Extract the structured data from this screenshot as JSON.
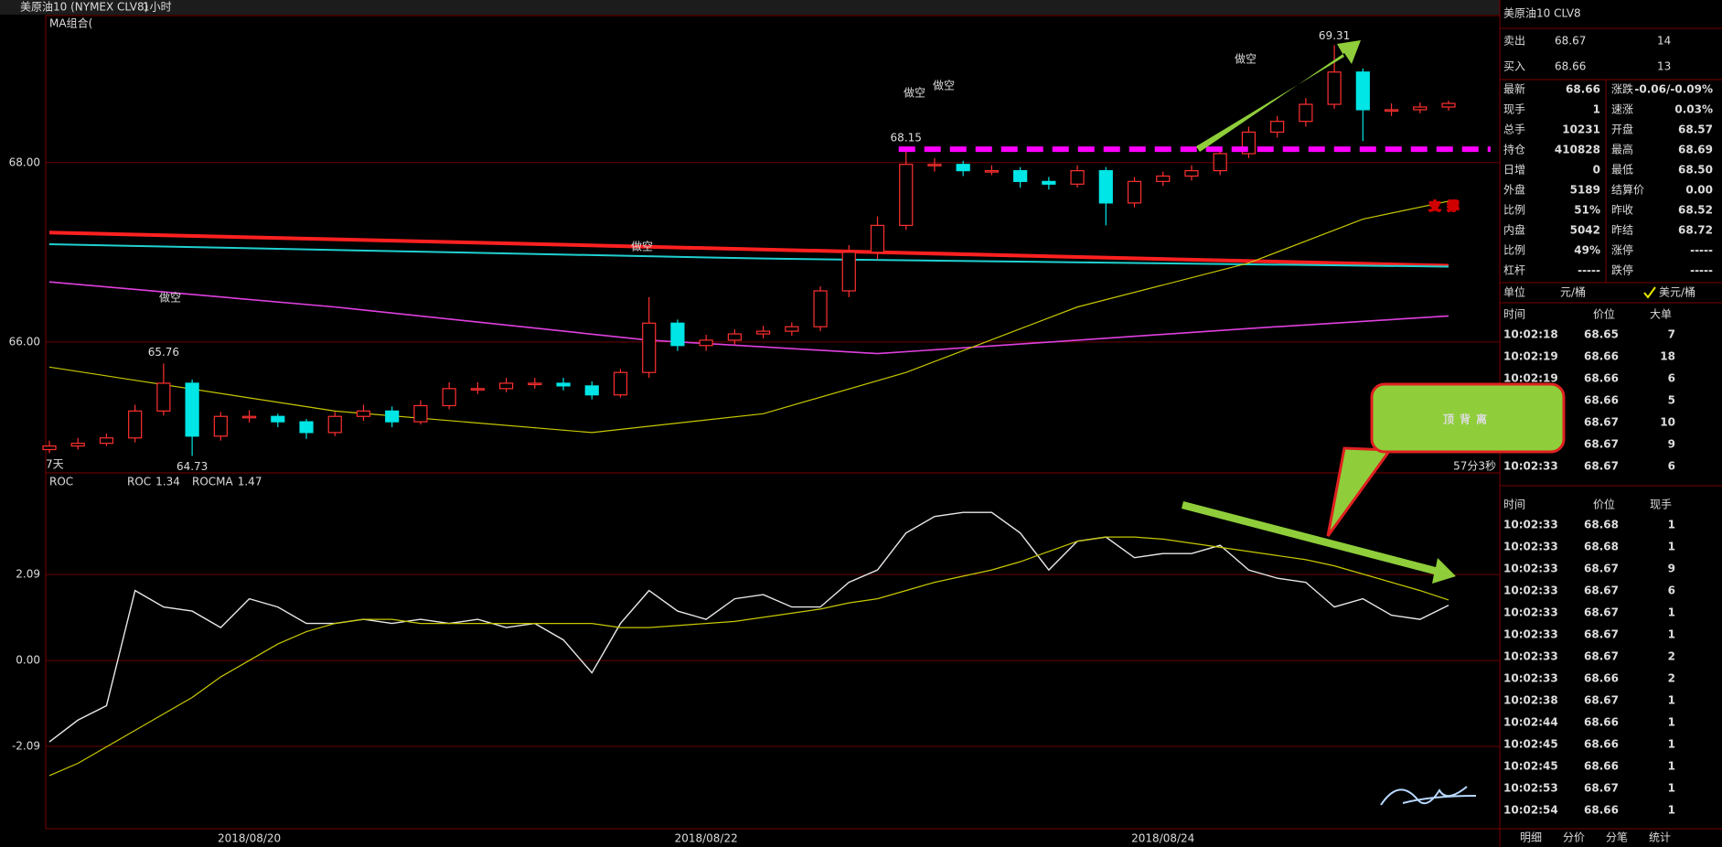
{
  "app": {
    "symbol": "美原油10 (NYMEX CLV8)",
    "period": "1小时"
  },
  "chart_data": [
    {
      "type": "candlestick",
      "indicator_label": "MA组合(",
      "ylim": [
        64.54,
        69.64
      ],
      "yticks": [
        {
          "value": 66,
          "label": "66.00"
        },
        {
          "value": 68,
          "label": "68.00"
        }
      ],
      "open": [
        64.8,
        64.84,
        64.87,
        64.93,
        65.23,
        65.54,
        64.95,
        65.17,
        65.17,
        65.11,
        64.99,
        65.17,
        65.23,
        65.11,
        65.29,
        65.48,
        65.48,
        65.54,
        65.54,
        65.51,
        65.41,
        65.66,
        66.21,
        65.96,
        66.02,
        66.09,
        66.12,
        66.17,
        66.57,
        67.0,
        67.3,
        67.98,
        67.98,
        67.91,
        67.91,
        67.79,
        67.76,
        67.91,
        67.55,
        67.79,
        67.85,
        67.91,
        68.1,
        68.34,
        68.46,
        68.65,
        69.01,
        68.59,
        68.59,
        68.62
      ],
      "high": [
        64.9,
        64.93,
        64.98,
        65.3,
        65.76,
        65.58,
        65.22,
        65.24,
        65.2,
        65.14,
        65.22,
        65.3,
        65.28,
        65.35,
        65.55,
        65.55,
        65.6,
        65.6,
        65.6,
        65.56,
        65.7,
        66.5,
        66.25,
        66.08,
        66.14,
        66.18,
        66.22,
        66.62,
        67.08,
        67.4,
        68.15,
        68.05,
        68.02,
        67.97,
        67.95,
        67.84,
        67.97,
        67.95,
        67.84,
        67.9,
        67.97,
        68.15,
        68.4,
        68.52,
        68.72,
        69.31,
        69.05,
        68.66,
        68.67,
        68.69
      ],
      "low": [
        64.76,
        64.8,
        64.84,
        64.88,
        65.18,
        64.73,
        64.9,
        65.1,
        65.05,
        64.92,
        64.95,
        65.12,
        65.05,
        65.08,
        65.25,
        65.42,
        65.44,
        65.48,
        65.46,
        65.36,
        65.38,
        65.6,
        65.9,
        65.9,
        65.97,
        66.04,
        66.07,
        66.12,
        66.5,
        66.92,
        67.25,
        67.9,
        67.85,
        67.86,
        67.72,
        67.7,
        67.72,
        67.3,
        67.5,
        67.74,
        67.8,
        67.86,
        68.05,
        68.28,
        68.4,
        68.6,
        68.24,
        68.52,
        68.55,
        68.58
      ],
      "close": [
        64.84,
        64.87,
        64.93,
        65.23,
        65.54,
        64.95,
        65.17,
        65.17,
        65.11,
        64.99,
        65.17,
        65.23,
        65.11,
        65.29,
        65.48,
        65.48,
        65.54,
        65.54,
        65.51,
        65.41,
        65.66,
        66.21,
        65.96,
        66.02,
        66.09,
        66.12,
        66.17,
        66.57,
        67.0,
        67.3,
        67.98,
        67.98,
        67.91,
        67.91,
        67.79,
        67.76,
        67.91,
        67.55,
        67.79,
        67.85,
        67.91,
        68.1,
        68.34,
        68.46,
        68.65,
        69.01,
        68.59,
        68.59,
        68.62,
        68.66
      ],
      "ma_lines": [
        {
          "color": "#ff2020",
          "x": [
            0,
            49
          ],
          "values": [
            67.22,
            66.85
          ]
        },
        {
          "color": "#20d0d0",
          "x": [
            0,
            25,
            49
          ],
          "values": [
            67.09,
            66.93,
            66.84
          ]
        },
        {
          "color": "#e040e0",
          "x": [
            0,
            10,
            21,
            29,
            36,
            42,
            49
          ],
          "values": [
            66.67,
            66.39,
            66.02,
            65.87,
            66.02,
            66.15,
            66.29
          ]
        },
        {
          "color": "#c8c800",
          "x": [
            0,
            10,
            19,
            25,
            30,
            36,
            42,
            46,
            49
          ],
          "values": [
            65.72,
            65.23,
            64.99,
            65.2,
            65.66,
            66.39,
            66.88,
            67.37,
            67.57
          ]
        }
      ],
      "signal_labels": [
        "做空",
        "做空",
        "做空",
        "做空",
        "做空"
      ],
      "period_label": "7天",
      "countdown": "57分3秒",
      "support_label": "支撑",
      "divergence_label": "顶背离"
    },
    {
      "type": "line",
      "indicator": "ROC",
      "categories": [
        null,
        null,
        null,
        null,
        null,
        null,
        null,
        "2018/08/20",
        null,
        null,
        null,
        null,
        null,
        null,
        null,
        null,
        null,
        null,
        null,
        null,
        null,
        null,
        null,
        "2018/08/22",
        null,
        null,
        null,
        null,
        null,
        null,
        null,
        null,
        null,
        null,
        null,
        null,
        null,
        null,
        null,
        "2018/08/24",
        null,
        null,
        null,
        null,
        null,
        null,
        null,
        null,
        null,
        null
      ],
      "ylim": [
        -4.09,
        4.56
      ],
      "yticks": [
        2.09,
        {
          "value": 0,
          "label": "0.00"
        },
        -2.09
      ],
      "series": [
        {
          "name": "ROC",
          "color": "#e8e8e8",
          "values": [
            -1.98,
            -1.45,
            -1.1,
            1.7,
            1.3,
            1.2,
            0.8,
            1.5,
            1.3,
            0.9,
            0.9,
            1.0,
            0.9,
            1.0,
            0.9,
            1.0,
            0.8,
            0.9,
            0.5,
            -0.3,
            0.9,
            1.7,
            1.2,
            1.0,
            1.5,
            1.6,
            1.3,
            1.3,
            1.9,
            2.2,
            3.1,
            3.5,
            3.6,
            3.6,
            3.1,
            2.2,
            2.9,
            3.0,
            2.5,
            2.6,
            2.6,
            2.8,
            2.2,
            2.0,
            1.9,
            1.3,
            1.5,
            1.1,
            1.0,
            1.34
          ]
        },
        {
          "name": "ROCMA",
          "color": "#c8c800",
          "values": [
            -2.8,
            -2.5,
            -2.1,
            -1.7,
            -1.3,
            -0.9,
            -0.4,
            0.0,
            0.4,
            0.7,
            0.9,
            1.0,
            1.0,
            0.9,
            0.9,
            0.9,
            0.9,
            0.9,
            0.9,
            0.9,
            0.8,
            0.8,
            0.85,
            0.9,
            0.95,
            1.05,
            1.15,
            1.25,
            1.4,
            1.5,
            1.7,
            1.9,
            2.05,
            2.2,
            2.4,
            2.65,
            2.9,
            3.0,
            3.0,
            2.95,
            2.85,
            2.75,
            2.65,
            2.55,
            2.45,
            2.3,
            2.1,
            1.9,
            1.7,
            1.47
          ]
        }
      ]
    }
  ],
  "quote": {
    "title": "美原油10  CLV8",
    "ask": [
      "卖出",
      "68.67",
      "14"
    ],
    "bid": [
      "买入",
      "68.66",
      "13"
    ],
    "stats": [
      [
        "最新",
        "68.66",
        "涨跌",
        "-0.06/-0.09%"
      ],
      [
        "现手",
        "1",
        "速涨",
        "0.03%"
      ],
      [
        "总手",
        "10231",
        "开盘",
        "68.57"
      ],
      [
        "持仓",
        "410828",
        "最高",
        "68.69"
      ],
      [
        "日增",
        "0",
        "最低",
        "68.50"
      ],
      [
        "外盘",
        "5189",
        "结算价",
        "0.00"
      ],
      [
        "比例",
        "51%",
        "昨收",
        "68.52"
      ],
      [
        "内盘",
        "5042",
        "昨结",
        "68.72"
      ],
      [
        "比例",
        "49%",
        "涨停",
        "-----"
      ],
      [
        "杠杆",
        "-----",
        "跌停",
        "-----"
      ]
    ],
    "unit": [
      "单位",
      "元/桶",
      "美元/桶"
    ],
    "big_trades": {
      "headers": [
        "时间",
        "价位",
        "大单"
      ],
      "rows": [
        [
          "10:02:18",
          "68.65",
          "7"
        ],
        [
          "10:02:19",
          "68.66",
          "18"
        ],
        [
          "10:02:19",
          "68.66",
          "6"
        ],
        [
          "10:02:19",
          "68.66",
          "5"
        ],
        [
          "10:02:19",
          "68.67",
          "10"
        ],
        [
          "10:02:19",
          "68.67",
          "9"
        ],
        [
          "10:02:33",
          "68.67",
          "6"
        ]
      ],
      "colors": [
        "#ff3030",
        "#ff3030",
        "#00e000",
        "#00e000",
        "#00e000",
        "#00e000",
        "#00e000"
      ]
    },
    "ticks": {
      "headers": [
        "时间",
        "价位",
        "现手"
      ],
      "rows": [
        [
          "10:02:33",
          "68.68",
          "1"
        ],
        [
          "10:02:33",
          "68.68",
          "1"
        ],
        [
          "10:02:33",
          "68.67",
          "9"
        ],
        [
          "10:02:33",
          "68.67",
          "6"
        ],
        [
          "10:02:33",
          "68.67",
          "1"
        ],
        [
          "10:02:33",
          "68.67",
          "1"
        ],
        [
          "10:02:33",
          "68.67",
          "2"
        ],
        [
          "10:02:33",
          "68.66",
          "2"
        ],
        [
          "10:02:38",
          "68.67",
          "1"
        ],
        [
          "10:02:44",
          "68.66",
          "1"
        ],
        [
          "10:02:45",
          "68.66",
          "1"
        ],
        [
          "10:02:45",
          "68.66",
          "1"
        ],
        [
          "10:02:53",
          "68.67",
          "1"
        ],
        [
          "10:02:54",
          "68.66",
          "1"
        ]
      ],
      "colors": [
        "#ff3030",
        "#ff3030",
        "#00e000",
        "#00e000",
        "#00e000",
        "#00e000",
        "#00e000",
        "#00e000",
        "#ff3030",
        "#00e000",
        "#00e000",
        "#00e000",
        "#ff3030",
        "#00e000"
      ]
    },
    "tabs": [
      "明细",
      "分价",
      "分笔",
      "统计"
    ]
  }
}
